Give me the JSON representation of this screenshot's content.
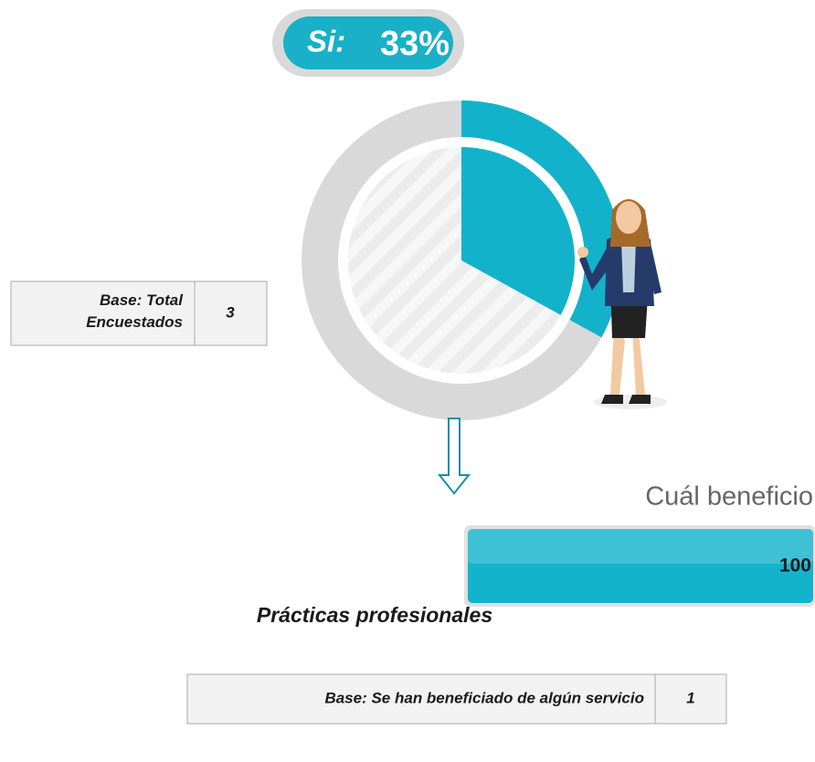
{
  "chart_data": [
    {
      "type": "pie",
      "label": "Si:",
      "values": [
        33
      ],
      "value_labels": [
        "33%"
      ],
      "color": "#12b2cb"
    },
    {
      "type": "bar",
      "title": "Cuál beneficio",
      "categories": [
        "Prácticas profesionales"
      ],
      "values": [
        100
      ],
      "color": "#14b3cc",
      "xlim": [
        0,
        100
      ]
    }
  ],
  "bases": [
    {
      "label": "Base: Total Encuestados",
      "value": 3
    },
    {
      "label": "Base: Se han beneficiado de algún servicio",
      "value": 1
    }
  ]
}
